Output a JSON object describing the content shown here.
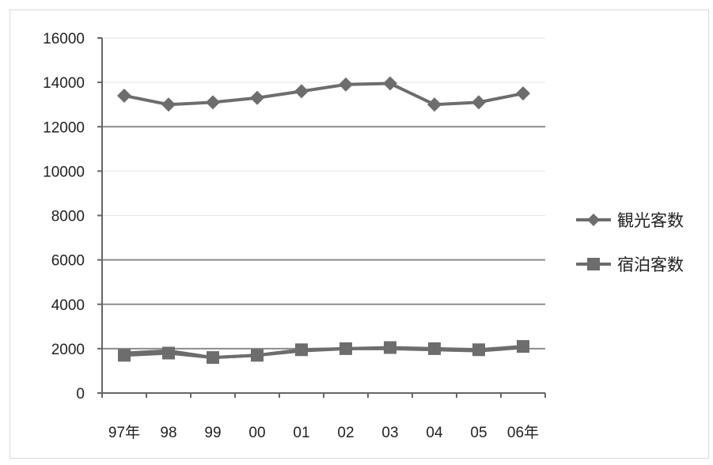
{
  "chart_data": {
    "type": "line",
    "categories": [
      "97年",
      "98",
      "99",
      "00",
      "01",
      "02",
      "03",
      "04",
      "05",
      "06年"
    ],
    "series": [
      {
        "name": "観光客数",
        "marker": "diamond",
        "values": [
          13400,
          13000,
          13100,
          13300,
          13600,
          13900,
          13950,
          13000,
          13100,
          13500
        ]
      },
      {
        "name": "宿泊客数",
        "marker": "square",
        "values": [
          1700,
          1800,
          1600,
          1700,
          1950,
          2000,
          2050,
          2000,
          1950,
          2100
        ]
      }
    ],
    "secondary_line": [
      1800,
      1900,
      1600,
      1700,
      1900,
      2000,
      2000,
      1950,
      1900,
      2050
    ],
    "yticks": [
      0,
      2000,
      4000,
      6000,
      8000,
      10000,
      12000,
      14000,
      16000
    ],
    "ylim": [
      0,
      16000
    ],
    "major_gridlines": [
      2000,
      4000,
      6000,
      12000
    ],
    "minor_gridlines": [
      8000,
      10000,
      14000,
      16000
    ],
    "grid": true,
    "legend_position": "right",
    "colors": {
      "series": "#6d6d6d",
      "axis": "#666666",
      "grid_major": "#8c8c8c",
      "grid_minor": "#e6e6e6"
    }
  }
}
